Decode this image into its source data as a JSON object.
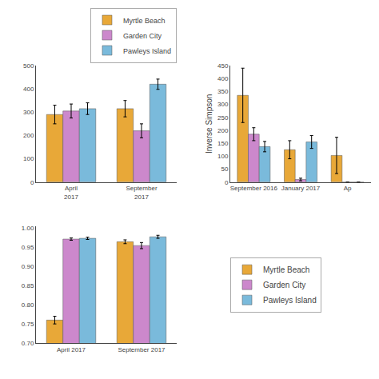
{
  "chart_data": [
    {
      "type": "bar",
      "categories": [
        "April\n2017",
        "September\n2017"
      ],
      "series": [
        {
          "name": "Myrtle Beach",
          "color": "#E8A838",
          "values": [
            290,
            315
          ],
          "errors": [
            40,
            35
          ]
        },
        {
          "name": "Garden City",
          "color": "#CC88CC",
          "values": [
            305,
            220
          ],
          "errors": [
            30,
            30
          ]
        },
        {
          "name": "Pawleys Island",
          "color": "#7ABADB",
          "values": [
            315,
            420
          ],
          "errors": [
            25,
            22
          ]
        }
      ],
      "ylim": [
        0,
        500
      ],
      "yticks": [
        0,
        100,
        200,
        300,
        400,
        500
      ],
      "grid": false,
      "legend": "upper right"
    },
    {
      "type": "bar",
      "ylabel": "Inverse Simpson",
      "categories": [
        "September 2016",
        "January 2017",
        "Ap"
      ],
      "series": [
        {
          "name": "Myrtle Beach",
          "color": "#E8A838",
          "values": [
            335,
            125,
            103
          ],
          "errors": [
            105,
            35,
            70
          ]
        },
        {
          "name": "Garden City",
          "color": "#CC88CC",
          "values": [
            185,
            10,
            0
          ],
          "errors": [
            25,
            5,
            0
          ]
        },
        {
          "name": "Pawleys Island",
          "color": "#7ABADB",
          "values": [
            137,
            155,
            0
          ],
          "errors": [
            20,
            25,
            0
          ]
        }
      ],
      "ylim": [
        0,
        450
      ],
      "yticks": [
        0,
        50,
        100,
        150,
        200,
        250,
        300,
        350,
        400,
        450
      ],
      "grid": false
    },
    {
      "type": "bar",
      "categories": [
        "April 2017",
        "September 2017"
      ],
      "series": [
        {
          "name": "Myrtle Beach",
          "color": "#E8A838",
          "values": [
            0.76,
            0.965
          ],
          "errors": [
            0.01,
            0.005
          ]
        },
        {
          "name": "Garden City",
          "color": "#CC88CC",
          "values": [
            0.972,
            0.955
          ],
          "errors": [
            0.003,
            0.008
          ]
        },
        {
          "name": "Pawleys Island",
          "color": "#7ABADB",
          "values": [
            0.974,
            0.978
          ],
          "errors": [
            0.003,
            0.004
          ]
        }
      ],
      "ylim": [
        0.7,
        1.005
      ],
      "yticks": [
        {
          "value": 0.7,
          "label": "0.70"
        },
        0.75,
        {
          "value": 0.8,
          "label": "0.80"
        },
        0.85,
        {
          "value": 0.9,
          "label": "0.90"
        },
        0.95,
        {
          "value": 1.0,
          "label": "1.00"
        }
      ],
      "grid": false,
      "legend": "right"
    }
  ]
}
